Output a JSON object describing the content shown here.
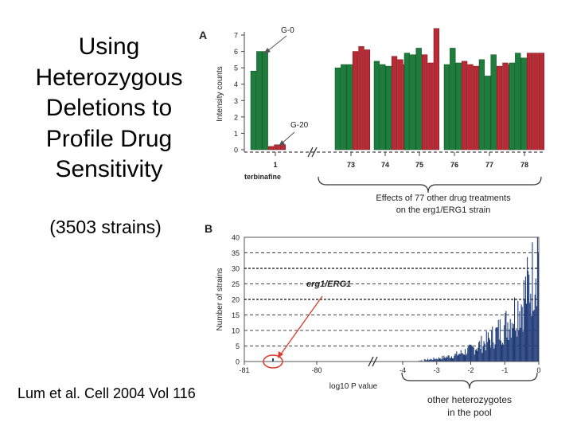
{
  "slide": {
    "title_lines": [
      "Using",
      "Heterozygous",
      "Deletions to",
      "Profile Drug",
      "Sensitivity"
    ],
    "subtitle": "(3503 strains)",
    "citation": "Lum et al. Cell 2004 Vol 116"
  },
  "colors": {
    "green": "#1e7d3c",
    "red": "#b82b35",
    "blue": "#1f3b78",
    "arrow_red": "#d93a2c"
  },
  "chart_data": [
    {
      "panel": "A",
      "type": "bar",
      "ylabel": "Intensity counts",
      "ylim": [
        0,
        7
      ],
      "yticks": [
        0,
        1,
        2,
        3,
        4,
        5,
        6,
        7
      ],
      "xlabel_left": "terbinafine",
      "group_labels": [
        "1",
        "73",
        "74",
        "75",
        "76",
        "77",
        "78"
      ],
      "groups": [
        {
          "label": "1",
          "green": [
            4.8,
            6.0,
            6.0
          ],
          "red": [
            0.2,
            0.3,
            0.3
          ]
        },
        {
          "label": "73",
          "green": [
            5.0,
            5.2,
            5.2
          ],
          "red": [
            6.0,
            6.3,
            6.1
          ]
        },
        {
          "label": "74",
          "green": [
            5.4,
            5.2,
            5.1
          ],
          "red": [
            5.7,
            5.5,
            5.2
          ]
        },
        {
          "label": "75",
          "green": [
            5.9,
            5.8,
            6.2
          ],
          "red": [
            5.8,
            5.3,
            7.4
          ]
        },
        {
          "label": "76",
          "green": [
            5.2,
            6.2,
            5.3
          ],
          "red": [
            5.4,
            5.2,
            5.1
          ]
        },
        {
          "label": "77",
          "green": [
            5.5,
            4.5,
            5.8
          ],
          "red": [
            5.1,
            5.3,
            5.2
          ]
        },
        {
          "label": "78",
          "green": [
            5.3,
            5.9,
            5.6
          ],
          "red": [
            5.9,
            5.9,
            5.9
          ]
        }
      ],
      "annotations": [
        "G-0",
        "G-20"
      ],
      "brace_label_lines": [
        "Effects of 77 other drug treatments",
        "on the erg1/ERG1 strain"
      ]
    },
    {
      "panel": "B",
      "type": "histogram",
      "ylabel": "Number of strains",
      "ylim": [
        0,
        40
      ],
      "yticks": [
        0,
        5,
        10,
        15,
        20,
        25,
        30,
        35,
        40
      ],
      "left_ticks": [
        "-81",
        "-80"
      ],
      "right_ticks": [
        "-4",
        "-3",
        "-2",
        "-1",
        "0"
      ],
      "xlabel": "log10 P value",
      "highlight_label": "erg1/ERG1",
      "highlight_x": -81,
      "highlight_count": 1,
      "bin_width": 0.025,
      "curve": [
        [
          -4,
          0
        ],
        [
          -3.5,
          0.3
        ],
        [
          -3,
          1
        ],
        [
          -2.5,
          2
        ],
        [
          -2,
          4
        ],
        [
          -1.5,
          7
        ],
        [
          -1,
          12
        ],
        [
          -0.5,
          20
        ],
        [
          -0.2,
          28
        ],
        [
          -0.05,
          38
        ],
        [
          0,
          40
        ]
      ],
      "brace_label_lines": [
        "other heterozygotes",
        "in the pool"
      ]
    }
  ]
}
